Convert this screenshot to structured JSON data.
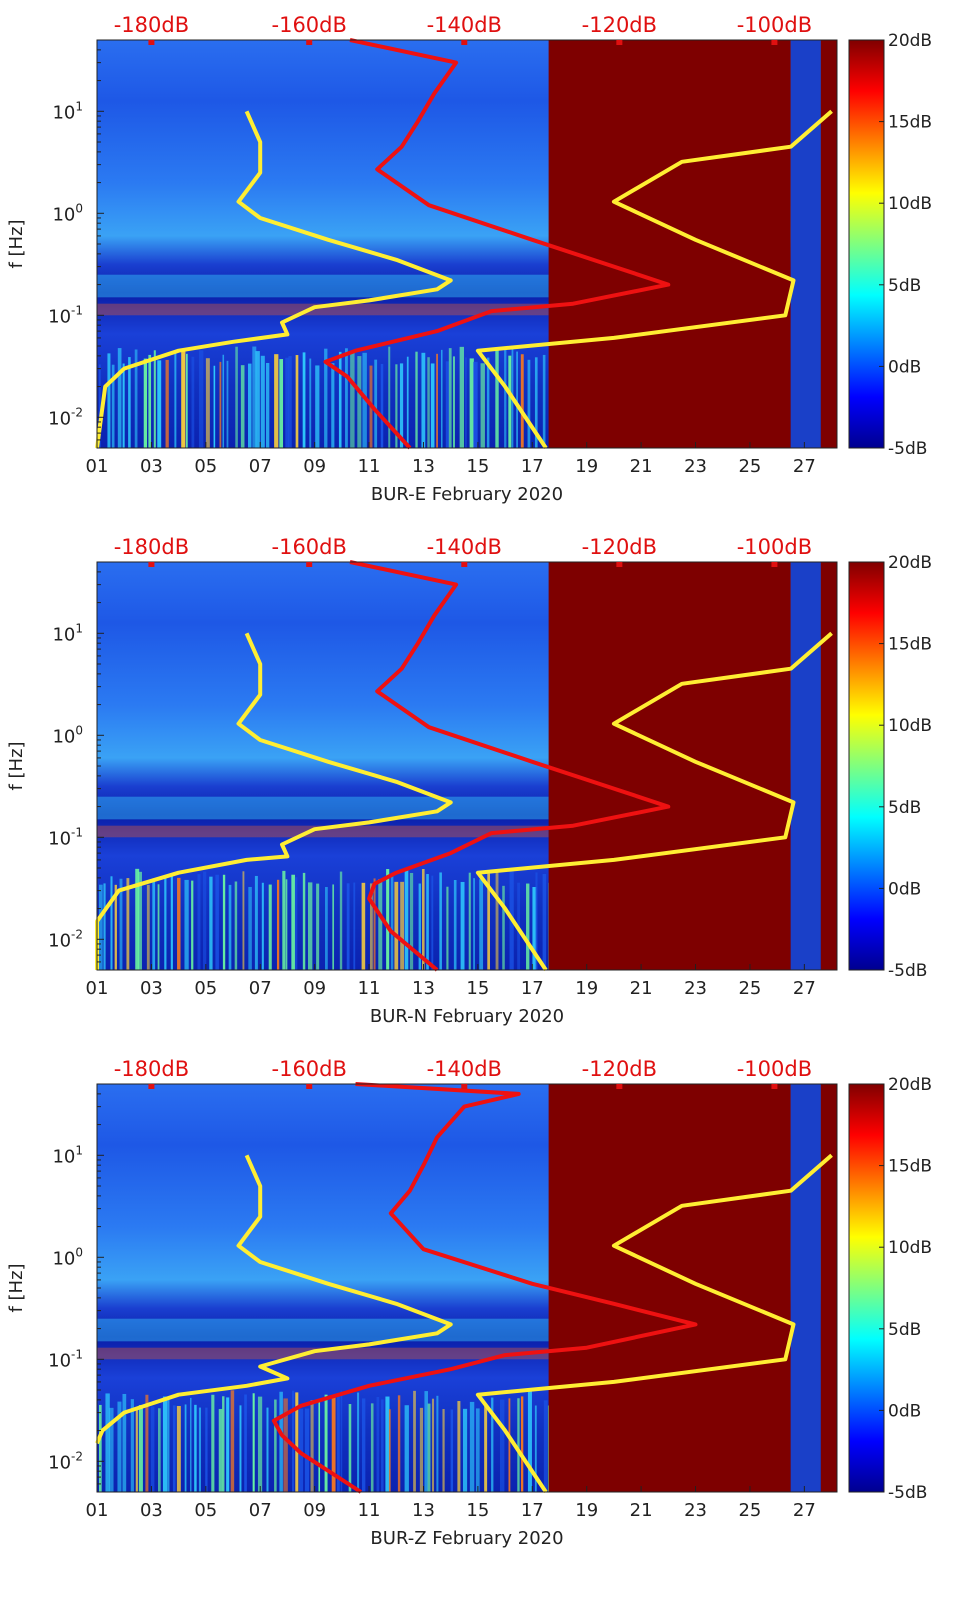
{
  "chart_data": [
    {
      "type": "heatmap",
      "station": "BUR-E",
      "xlabel": "BUR-E February 2020",
      "ylabel": "f [Hz]",
      "x_ticks": [
        "01",
        "03",
        "05",
        "07",
        "09",
        "11",
        "13",
        "15",
        "17",
        "19",
        "21",
        "23",
        "25",
        "27"
      ],
      "y_ticks": [
        "10^{-2}",
        "10^{-1}",
        "10^{0}",
        "10^{1}"
      ],
      "y_scale": "log",
      "ylim": [
        0.005,
        50
      ],
      "xlim_day": [
        1,
        28.2
      ],
      "top_axis_ticks": [
        "-180dB",
        "-160dB",
        "-140dB",
        "-120dB",
        "-100dB"
      ],
      "colorbar": {
        "ticks": [
          "20dB",
          "15dB",
          "10dB",
          "5dB",
          "0dB",
          "-5dB"
        ],
        "range_db": [
          -5,
          20
        ],
        "colormap": "jet"
      },
      "data_gap_days": [
        17.6,
        26.5
      ],
      "series": [
        {
          "color": "#ffee33",
          "points": [
            [
              1.0,
              0.005
            ],
            [
              1.3,
              0.02
            ],
            [
              2.0,
              0.03
            ],
            [
              4.0,
              0.045
            ],
            [
              6.0,
              0.055
            ],
            [
              8.0,
              0.065
            ],
            [
              7.8,
              0.085
            ],
            [
              9.0,
              0.12
            ],
            [
              11.0,
              0.14
            ],
            [
              13.5,
              0.18
            ],
            [
              14.0,
              0.22
            ],
            [
              12.0,
              0.35
            ],
            [
              9.5,
              0.55
            ],
            [
              7.0,
              0.9
            ],
            [
              6.2,
              1.3
            ],
            [
              7.0,
              2.5
            ],
            [
              7.0,
              5.0
            ],
            [
              6.5,
              10.0
            ]
          ]
        },
        {
          "color": "#ffee33",
          "points": [
            [
              17.5,
              0.005
            ],
            [
              16.0,
              0.02
            ],
            [
              15.0,
              0.045
            ],
            [
              20.0,
              0.06
            ],
            [
              26.3,
              0.1
            ],
            [
              26.6,
              0.22
            ],
            [
              23.0,
              0.55
            ],
            [
              20.0,
              1.3
            ],
            [
              22.5,
              3.2
            ],
            [
              26.5,
              4.5
            ],
            [
              28.0,
              10.0
            ]
          ]
        },
        {
          "color": "#ee1111",
          "points": [
            [
              12.5,
              0.005
            ],
            [
              11.2,
              0.012
            ],
            [
              10.2,
              0.025
            ],
            [
              9.4,
              0.035
            ],
            [
              10.5,
              0.045
            ],
            [
              13.5,
              0.07
            ],
            [
              15.5,
              0.11
            ],
            [
              18.5,
              0.13
            ],
            [
              22.0,
              0.2
            ],
            [
              20.0,
              0.3
            ],
            [
              17.0,
              0.55
            ],
            [
              13.2,
              1.2
            ],
            [
              11.3,
              2.7
            ],
            [
              12.2,
              4.5
            ],
            [
              12.8,
              8.0
            ],
            [
              13.4,
              15.0
            ],
            [
              14.2,
              30.0
            ],
            [
              10.3,
              50.0
            ]
          ]
        }
      ]
    },
    {
      "type": "heatmap",
      "station": "BUR-N",
      "xlabel": "BUR-N February 2020",
      "ylabel": "f [Hz]",
      "x_ticks": [
        "01",
        "03",
        "05",
        "07",
        "09",
        "11",
        "13",
        "15",
        "17",
        "19",
        "21",
        "23",
        "25",
        "27"
      ],
      "y_ticks": [
        "10^{-2}",
        "10^{-1}",
        "10^{0}",
        "10^{1}"
      ],
      "y_scale": "log",
      "ylim": [
        0.005,
        50
      ],
      "xlim_day": [
        1,
        28.2
      ],
      "top_axis_ticks": [
        "-180dB",
        "-160dB",
        "-140dB",
        "-120dB",
        "-100dB"
      ],
      "colorbar": {
        "ticks": [
          "20dB",
          "15dB",
          "10dB",
          "5dB",
          "0dB",
          "-5dB"
        ],
        "range_db": [
          -5,
          20
        ],
        "colormap": "jet"
      },
      "data_gap_days": [
        17.6,
        26.5
      ],
      "series": [
        {
          "color": "#ffee33",
          "points": [
            [
              1.0,
              0.005
            ],
            [
              1.0,
              0.015
            ],
            [
              1.8,
              0.03
            ],
            [
              4.0,
              0.045
            ],
            [
              6.5,
              0.06
            ],
            [
              8.0,
              0.065
            ],
            [
              7.8,
              0.085
            ],
            [
              9.0,
              0.12
            ],
            [
              11.0,
              0.14
            ],
            [
              13.5,
              0.18
            ],
            [
              14.0,
              0.22
            ],
            [
              12.0,
              0.35
            ],
            [
              9.5,
              0.55
            ],
            [
              7.0,
              0.9
            ],
            [
              6.2,
              1.3
            ],
            [
              7.0,
              2.5
            ],
            [
              7.0,
              5.0
            ],
            [
              6.5,
              10.0
            ]
          ]
        },
        {
          "color": "#ffee33",
          "points": [
            [
              17.5,
              0.005
            ],
            [
              16.0,
              0.02
            ],
            [
              15.0,
              0.045
            ],
            [
              20.0,
              0.06
            ],
            [
              26.3,
              0.1
            ],
            [
              26.6,
              0.22
            ],
            [
              23.0,
              0.55
            ],
            [
              20.0,
              1.3
            ],
            [
              22.5,
              3.2
            ],
            [
              26.5,
              4.5
            ],
            [
              28.0,
              10.0
            ]
          ]
        },
        {
          "color": "#ee1111",
          "points": [
            [
              13.5,
              0.005
            ],
            [
              11.8,
              0.012
            ],
            [
              11.0,
              0.025
            ],
            [
              11.2,
              0.035
            ],
            [
              12.0,
              0.045
            ],
            [
              14.0,
              0.07
            ],
            [
              15.5,
              0.11
            ],
            [
              18.5,
              0.13
            ],
            [
              22.0,
              0.2
            ],
            [
              20.0,
              0.3
            ],
            [
              17.0,
              0.55
            ],
            [
              13.2,
              1.2
            ],
            [
              11.3,
              2.7
            ],
            [
              12.2,
              4.5
            ],
            [
              12.8,
              8.0
            ],
            [
              13.4,
              15.0
            ],
            [
              14.2,
              30.0
            ],
            [
              10.3,
              50.0
            ]
          ]
        }
      ]
    },
    {
      "type": "heatmap",
      "station": "BUR-Z",
      "xlabel": "BUR-Z February 2020",
      "ylabel": "f [Hz]",
      "x_ticks": [
        "01",
        "03",
        "05",
        "07",
        "09",
        "11",
        "13",
        "15",
        "17",
        "19",
        "21",
        "23",
        "25",
        "27"
      ],
      "y_ticks": [
        "10^{-2}",
        "10^{-1}",
        "10^{0}",
        "10^{1}"
      ],
      "y_scale": "log",
      "ylim": [
        0.005,
        50
      ],
      "xlim_day": [
        1,
        28.2
      ],
      "top_axis_ticks": [
        "-180dB",
        "-160dB",
        "-140dB",
        "-120dB",
        "-100dB"
      ],
      "colorbar": {
        "ticks": [
          "20dB",
          "15dB",
          "10dB",
          "5dB",
          "0dB",
          "-5dB"
        ],
        "range_db": [
          -5,
          20
        ],
        "colormap": "jet"
      },
      "data_gap_days": [
        17.6,
        26.5
      ],
      "series": [
        {
          "color": "#ffee33",
          "points": [
            [
              1.0,
              0.015
            ],
            [
              1.2,
              0.02
            ],
            [
              2.0,
              0.03
            ],
            [
              4.0,
              0.045
            ],
            [
              6.5,
              0.055
            ],
            [
              8.0,
              0.065
            ],
            [
              7.0,
              0.085
            ],
            [
              9.0,
              0.12
            ],
            [
              11.0,
              0.14
            ],
            [
              13.5,
              0.18
            ],
            [
              14.0,
              0.22
            ],
            [
              12.0,
              0.35
            ],
            [
              9.5,
              0.55
            ],
            [
              7.0,
              0.9
            ],
            [
              6.2,
              1.3
            ],
            [
              7.0,
              2.5
            ],
            [
              7.0,
              5.0
            ],
            [
              6.5,
              10.0
            ]
          ]
        },
        {
          "color": "#ffee33",
          "points": [
            [
              17.5,
              0.005
            ],
            [
              16.0,
              0.02
            ],
            [
              15.0,
              0.045
            ],
            [
              20.0,
              0.06
            ],
            [
              26.3,
              0.1
            ],
            [
              26.6,
              0.22
            ],
            [
              23.0,
              0.55
            ],
            [
              20.0,
              1.3
            ],
            [
              22.5,
              3.2
            ],
            [
              26.5,
              4.5
            ],
            [
              28.0,
              10.0
            ]
          ]
        },
        {
          "color": "#ee1111",
          "points": [
            [
              10.7,
              0.005
            ],
            [
              8.5,
              0.012
            ],
            [
              7.8,
              0.018
            ],
            [
              7.5,
              0.025
            ],
            [
              8.5,
              0.035
            ],
            [
              11.0,
              0.055
            ],
            [
              14.0,
              0.08
            ],
            [
              16.0,
              0.11
            ],
            [
              19.0,
              0.13
            ],
            [
              23.0,
              0.22
            ],
            [
              20.0,
              0.35
            ],
            [
              17.0,
              0.55
            ],
            [
              13.0,
              1.2
            ],
            [
              11.8,
              2.7
            ],
            [
              12.5,
              4.5
            ],
            [
              13.0,
              8.0
            ],
            [
              13.5,
              15.0
            ],
            [
              14.5,
              30.0
            ],
            [
              16.5,
              40.0
            ],
            [
              10.5,
              50.0
            ]
          ]
        }
      ]
    }
  ]
}
